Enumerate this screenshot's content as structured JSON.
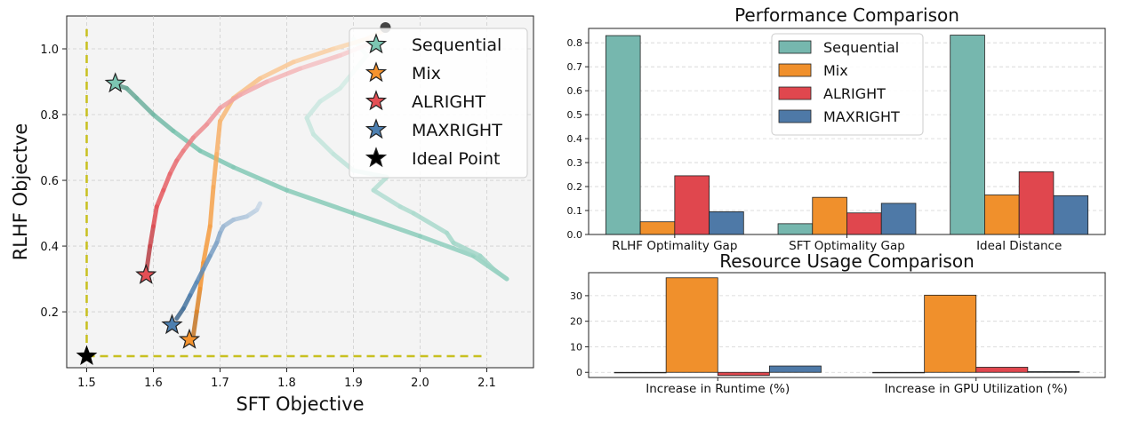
{
  "chart_data": [
    {
      "type": "line",
      "xlabel": "SFT Objective",
      "ylabel": "RLHF Objectve",
      "xlim": [
        1.47,
        2.17
      ],
      "ylim": [
        0.03,
        1.1
      ],
      "xticks": [
        1.5,
        1.6,
        1.7,
        1.8,
        1.9,
        2.0,
        2.1
      ],
      "yticks": [
        0.2,
        0.4,
        0.6,
        0.8,
        1.0
      ],
      "grid": true,
      "legend_position": "top-right",
      "legend": [
        "Sequential",
        "Mix",
        "ALRIGHT",
        "MAXRIGHT",
        "Ideal Point"
      ],
      "colors": {
        "Sequential": "#7cc6b2",
        "Mix": "#f5932e",
        "ALRIGHT": "#e44f55",
        "MAXRIGHT": "#4d7fb0",
        "Ideal Point": "#000000",
        "ideal_box": "#c8c020"
      },
      "ideal_box": {
        "x": [
          1.5,
          2.1
        ],
        "y": [
          0.065,
          1.06
        ]
      },
      "series": [
        {
          "name": "Sequential",
          "x": [
            1.545,
            1.56,
            1.575,
            1.6,
            1.63,
            1.67,
            1.72,
            1.8,
            1.9,
            2.0,
            2.08,
            2.13,
            2.11,
            2.09,
            2.05,
            2.04,
            1.99,
            1.97,
            1.93,
            1.95,
            1.9,
            1.87,
            1.84,
            1.83,
            1.85,
            1.88,
            1.9,
            1.92,
            1.9
          ],
          "y": [
            0.89,
            0.88,
            0.85,
            0.8,
            0.75,
            0.69,
            0.64,
            0.57,
            0.5,
            0.43,
            0.37,
            0.3,
            0.33,
            0.37,
            0.41,
            0.44,
            0.5,
            0.52,
            0.57,
            0.61,
            0.63,
            0.68,
            0.74,
            0.79,
            0.84,
            0.88,
            0.93,
            0.98,
            1.03
          ],
          "marker": {
            "x": 1.543,
            "y": 0.895
          }
        },
        {
          "name": "Mix",
          "x": [
            1.66,
            1.665,
            1.67,
            1.675,
            1.685,
            1.69,
            1.695,
            1.7,
            1.72,
            1.76,
            1.81,
            1.87,
            1.92,
            1.95
          ],
          "y": [
            0.13,
            0.2,
            0.27,
            0.35,
            0.46,
            0.58,
            0.68,
            0.78,
            0.85,
            0.91,
            0.96,
            1.0,
            1.03,
            1.06
          ],
          "marker": {
            "x": 1.654,
            "y": 0.115
          }
        },
        {
          "name": "ALRIGHT",
          "x": [
            1.59,
            1.595,
            1.6,
            1.605,
            1.615,
            1.625,
            1.635,
            1.645,
            1.66,
            1.68,
            1.7,
            1.73,
            1.77,
            1.82,
            1.88,
            1.93
          ],
          "y": [
            0.33,
            0.4,
            0.46,
            0.52,
            0.57,
            0.62,
            0.66,
            0.69,
            0.73,
            0.77,
            0.82,
            0.86,
            0.9,
            0.94,
            0.98,
            1.02
          ],
          "marker": {
            "x": 1.589,
            "y": 0.312
          }
        },
        {
          "name": "MAXRIGHT",
          "x": [
            1.635,
            1.645,
            1.655,
            1.665,
            1.675,
            1.685,
            1.695,
            1.7,
            1.705,
            1.72,
            1.74,
            1.755,
            1.76
          ],
          "y": [
            0.18,
            0.21,
            0.25,
            0.29,
            0.33,
            0.37,
            0.41,
            0.44,
            0.46,
            0.48,
            0.49,
            0.51,
            0.53
          ],
          "marker": {
            "x": 1.628,
            "y": 0.16
          }
        }
      ],
      "ideal_point": {
        "x": 1.5,
        "y": 0.065
      },
      "end_point": {
        "x": 1.948,
        "y": 1.065
      }
    },
    {
      "type": "bar",
      "title": "Performance Comparison",
      "categories": [
        "RLHF Optimality Gap",
        "SFT Optimality Gap",
        "Ideal Distance"
      ],
      "ylim": [
        0,
        0.86
      ],
      "yticks": [
        0.0,
        0.1,
        0.2,
        0.3,
        0.4,
        0.5,
        0.6,
        0.7,
        0.8
      ],
      "ytick_labels": [
        "0.0",
        "0.1",
        "0.2",
        "0.3",
        "0.4",
        "0.5",
        "0.6",
        "0.7",
        "0.8"
      ],
      "grid": true,
      "legend_position": "top-center",
      "series": [
        {
          "name": "Sequential",
          "values": [
            0.83,
            0.045,
            0.832
          ],
          "color": "#76b7ae"
        },
        {
          "name": "Mix",
          "values": [
            0.053,
            0.155,
            0.165
          ],
          "color": "#f0902c"
        },
        {
          "name": "ALRIGHT",
          "values": [
            0.245,
            0.09,
            0.262
          ],
          "color": "#e0474e"
        },
        {
          "name": "MAXRIGHT",
          "values": [
            0.095,
            0.13,
            0.162
          ],
          "color": "#4e79a7"
        }
      ]
    },
    {
      "type": "bar",
      "title": "Resource Usage Comparison",
      "categories": [
        "Increase in Runtime (%)",
        "Increase in GPU Utilization (%)"
      ],
      "ylim": [
        -2,
        39
      ],
      "yticks": [
        0,
        10,
        20,
        30
      ],
      "ytick_labels": [
        "0",
        "10",
        "20",
        "30"
      ],
      "grid": true,
      "series": [
        {
          "name": "Sequential",
          "values": [
            0,
            0
          ],
          "color": "#76b7ae"
        },
        {
          "name": "Mix",
          "values": [
            37.0,
            30.2
          ],
          "color": "#f0902c"
        },
        {
          "name": "ALRIGHT",
          "values": [
            -1.2,
            2.0
          ],
          "color": "#e0474e"
        },
        {
          "name": "MAXRIGHT",
          "values": [
            2.5,
            0.3
          ],
          "color": "#4e79a7"
        }
      ]
    }
  ]
}
